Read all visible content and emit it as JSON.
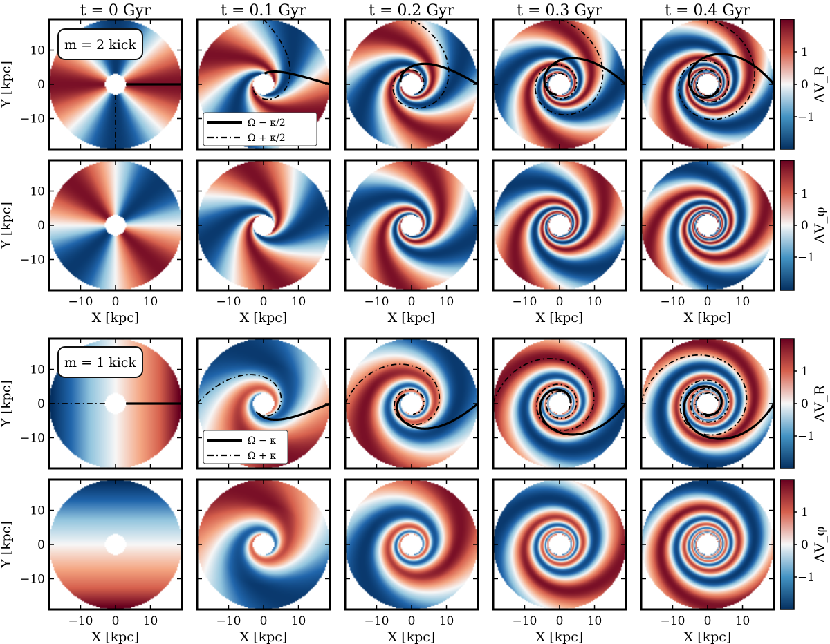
{
  "chart_data": {
    "type": "heatmap",
    "column_titles": [
      "t = 0 Gyr",
      "t = 0.1 Gyr",
      "t = 0.2 Gyr",
      "t = 0.3 Gyr",
      "t = 0.4 Gyr"
    ],
    "times_gyr": [
      0,
      0.1,
      0.2,
      0.3,
      0.4
    ],
    "xlabel": "X [kpc]",
    "ylabel": "Y [kpc]",
    "xlim": [
      -19,
      19
    ],
    "ylim": [
      -19,
      19
    ],
    "xticks": [
      -10,
      0,
      10
    ],
    "yticks": [
      10,
      0,
      -10
    ],
    "disk_inner_radius_kpc": 3,
    "disk_outer_radius_kpc": 19,
    "colorbar": {
      "range": [
        -2,
        2
      ],
      "ticks": [
        1,
        0,
        -1
      ],
      "low_color": "#053061",
      "mid_color": "#f7f7f7",
      "high_color": "#67001f"
    },
    "rows": [
      {
        "quantity": "ΔV_R",
        "colorbar_label": "ΔV_R",
        "kick_label": "m = 2 kick",
        "mode_m": 2,
        "legend": [
          "Ω − κ/2",
          "Ω + κ/2"
        ]
      },
      {
        "quantity": "ΔV_φ",
        "colorbar_label": "ΔV_φ",
        "mode_m": 2
      },
      {
        "quantity": "ΔV_R",
        "colorbar_label": "ΔV_R",
        "kick_label": "m = 1 kick",
        "mode_m": 1,
        "legend": [
          "Ω − κ",
          "Ω + κ"
        ]
      },
      {
        "quantity": "ΔV_φ",
        "colorbar_label": "ΔV_φ",
        "mode_m": 1
      }
    ]
  }
}
